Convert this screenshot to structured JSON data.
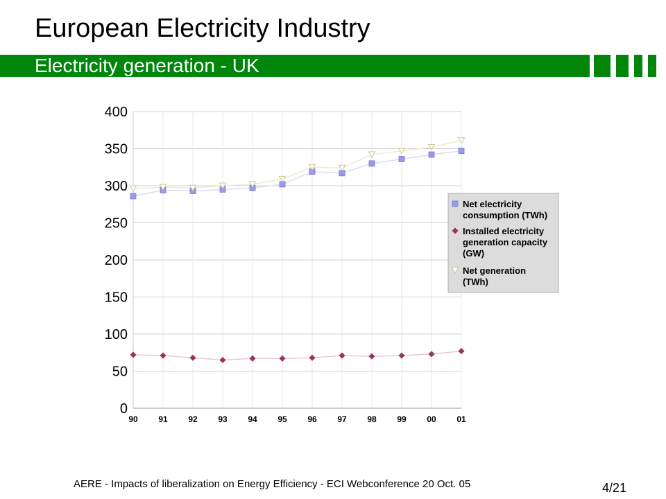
{
  "header": {
    "title": "European Electricity Industry",
    "subtitle": "Electricity generation - UK"
  },
  "footer": {
    "text": "AERE - Impacts of liberalization on Energy Efficiency - ECI Webconference 20 Oct.  05",
    "page": "4/21"
  },
  "colors": {
    "bar_green": "#00860a",
    "consumption": "#9999ee",
    "capacity": "#993366",
    "generation": "#d8d8a8",
    "legend_bg": "#dcdcdc"
  },
  "chart_data": {
    "type": "scatter",
    "categories": [
      "90",
      "91",
      "92",
      "93",
      "94",
      "95",
      "96",
      "97",
      "98",
      "99",
      "00",
      "01"
    ],
    "ylim": [
      0,
      400
    ],
    "yticks": [
      0,
      50,
      100,
      150,
      200,
      250,
      300,
      350,
      400
    ],
    "grid": true,
    "legend_position": "right",
    "series": [
      {
        "name": "Net electricity consumption (TWh)",
        "marker": "square",
        "values": [
          286,
          294,
          293,
          295,
          297,
          302,
          319,
          317,
          330,
          336,
          342,
          347
        ]
      },
      {
        "name": "Installed electricity generation capacity (GW)",
        "marker": "diamond",
        "values": [
          72,
          71,
          68,
          65,
          67,
          67,
          68,
          71,
          70,
          71,
          73,
          77
        ]
      },
      {
        "name": "Net generation (TWh)",
        "marker": "triangle-down",
        "values": [
          296,
          298,
          297,
          300,
          302,
          309,
          325,
          324,
          342,
          347,
          352,
          361
        ]
      }
    ],
    "legend_lines": [
      [
        "Net electricity",
        "consumption (TWh)"
      ],
      [
        "Installed electricity",
        "generation capacity",
        "(GW)"
      ],
      [
        "Net generation",
        "(TWh)"
      ]
    ]
  }
}
